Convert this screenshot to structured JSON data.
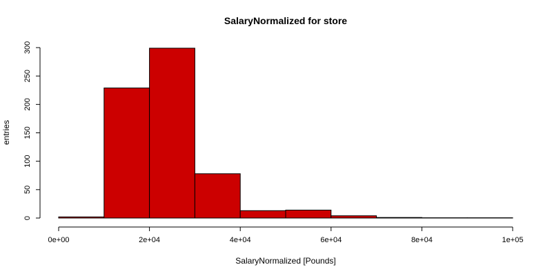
{
  "chart_data": {
    "type": "bar",
    "title": "SalaryNormalized for store",
    "xlabel": "SalaryNormalized [Pounds]",
    "ylabel": "entries",
    "bin_edges": [
      0,
      10000,
      20000,
      30000,
      40000,
      50000,
      60000,
      70000,
      80000,
      90000,
      100000
    ],
    "values": [
      2,
      229,
      299,
      78,
      13,
      14,
      4,
      1,
      0.5,
      0.5
    ],
    "xlim": [
      0,
      100000
    ],
    "ylim": [
      0,
      300
    ],
    "x_ticks": [
      {
        "value": 0,
        "label": "0e+00"
      },
      {
        "value": 20000,
        "label": "2e+04"
      },
      {
        "value": 40000,
        "label": "4e+04"
      },
      {
        "value": 60000,
        "label": "6e+04"
      },
      {
        "value": 80000,
        "label": "8e+04"
      },
      {
        "value": 100000,
        "label": "1e+05"
      }
    ],
    "y_ticks": [
      {
        "value": 0,
        "label": "0"
      },
      {
        "value": 50,
        "label": "50"
      },
      {
        "value": 100,
        "label": "100"
      },
      {
        "value": 150,
        "label": "150"
      },
      {
        "value": 200,
        "label": "200"
      },
      {
        "value": 250,
        "label": "250"
      },
      {
        "value": 300,
        "label": "300"
      }
    ],
    "bar_color": "#cc0000",
    "grid": false,
    "legend": "none"
  }
}
